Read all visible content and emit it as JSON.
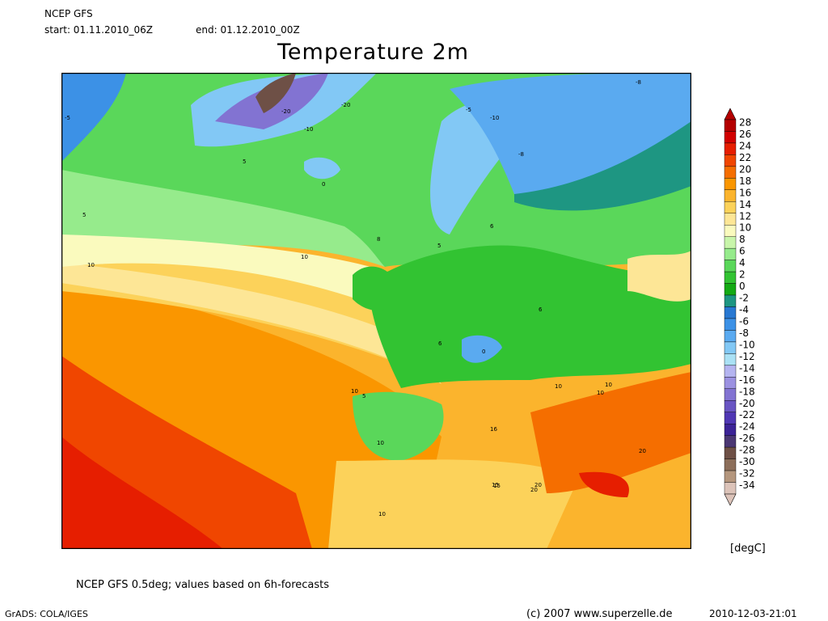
{
  "header": {
    "model": "NCEP GFS",
    "start": "start: 01.11.2010_06Z",
    "end": "end: 01.12.2010_00Z",
    "title": "Temperature 2m"
  },
  "legend": {
    "levels": [
      28,
      26,
      24,
      22,
      20,
      18,
      16,
      14,
      12,
      10,
      8,
      6,
      4,
      2,
      0,
      -2,
      -4,
      -6,
      -8,
      -10,
      -12,
      -14,
      -16,
      -18,
      -20,
      -22,
      -24,
      -26,
      -28,
      -30,
      -32,
      -34
    ],
    "colors": [
      "#b40000",
      "#d20000",
      "#e61e00",
      "#f04600",
      "#f56e00",
      "#fa9600",
      "#fbb42d",
      "#fcd25a",
      "#fde696",
      "#fafabe",
      "#c8f5aa",
      "#96eb8c",
      "#5ad75a",
      "#32c332",
      "#14aa14",
      "#1e9682",
      "#2878d2",
      "#3c91e6",
      "#5aaaf0",
      "#82c8f5",
      "#aae1f5",
      "#b4b4f0",
      "#9b91e1",
      "#8273d2",
      "#6955c3",
      "#5037b4",
      "#3c2396",
      "#4b3773",
      "#6e5046",
      "#8c6e5a",
      "#b4967d",
      "#dcc3b9"
    ],
    "unit": "[degC]"
  },
  "map": {
    "contour_labels": [
      "-5",
      "-20",
      "-10",
      "-20",
      "-5",
      "-10",
      "-8",
      "-8",
      "5",
      "0",
      "5",
      "5",
      "10",
      "10",
      "8",
      "6",
      "6",
      "6",
      "10",
      "10",
      "10",
      "5",
      "10",
      "16",
      "20",
      "10",
      "15",
      "20",
      "10",
      "15",
      "20",
      "0"
    ]
  },
  "footer": {
    "note": "NCEP GFS 0.5deg; values based on 6h-forecasts",
    "software": "GrADS: COLA/IGES",
    "copyright": "(c) 2007 www.superzelle.de",
    "timestamp": "2010-12-03-21:01"
  }
}
